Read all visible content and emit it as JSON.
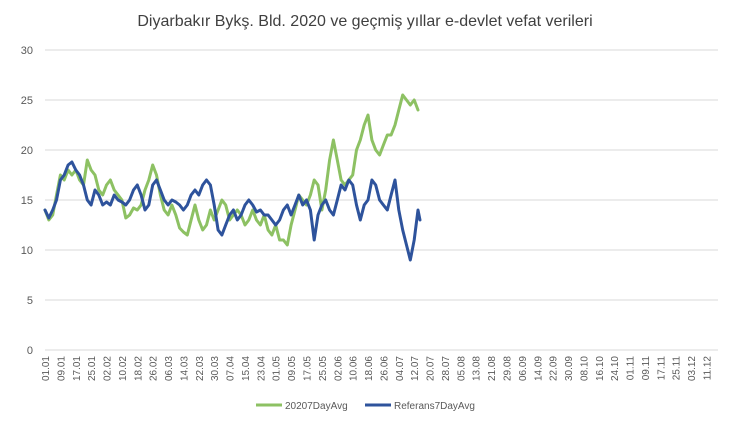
{
  "chart_data": {
    "type": "line",
    "title": "Diyarbakır Bykş. Bld. 2020 ve geçmiş yıllar e-devlet vefat verileri",
    "xlabel": "",
    "ylabel": "",
    "ylim": [
      0,
      30
    ],
    "yticks": [
      0,
      5,
      10,
      15,
      20,
      25,
      30
    ],
    "x_tick_labels": [
      "01.01",
      "09.01",
      "17.01",
      "25.01",
      "02.02",
      "10.02",
      "18.02",
      "26.02",
      "06.03",
      "14.03",
      "22.03",
      "30.03",
      "07.04",
      "15.04",
      "23.04",
      "01.05",
      "09.05",
      "17.05",
      "25.05",
      "02.06",
      "10.06",
      "18.06",
      "26.06",
      "04.07",
      "12.07",
      "20.07",
      "28.07",
      "05.08",
      "13.08",
      "21.08",
      "29.08",
      "06.09",
      "14.09",
      "22.09",
      "30.09",
      "08.10",
      "16.10",
      "24.10",
      "01.11",
      "09.11",
      "17.11",
      "25.11",
      "03.12",
      "11.12"
    ],
    "x_tick_step_days": 8,
    "x_range_days": [
      0,
      350
    ],
    "grid": "horizontal",
    "legend_position": "bottom",
    "colors": {
      "series_2020": "#8dc163",
      "series_ref": "#2e539c",
      "grid": "#d9d9d9",
      "axis_text": "#595959",
      "title": "#404040"
    },
    "series": [
      {
        "name": "20207DayAvg",
        "color": "#8dc163",
        "points": [
          [
            0,
            14.0
          ],
          [
            2,
            13.0
          ],
          [
            4,
            13.5
          ],
          [
            6,
            15.5
          ],
          [
            8,
            17.5
          ],
          [
            10,
            17.0
          ],
          [
            12,
            18.0
          ],
          [
            14,
            17.5
          ],
          [
            16,
            18.0
          ],
          [
            18,
            17.0
          ],
          [
            20,
            16.5
          ],
          [
            22,
            19.0
          ],
          [
            24,
            18.0
          ],
          [
            26,
            17.5
          ],
          [
            28,
            16.0
          ],
          [
            30,
            15.5
          ],
          [
            32,
            16.5
          ],
          [
            34,
            17.0
          ],
          [
            36,
            16.0
          ],
          [
            38,
            15.5
          ],
          [
            40,
            15.0
          ],
          [
            42,
            13.2
          ],
          [
            44,
            13.5
          ],
          [
            46,
            14.2
          ],
          [
            48,
            14.0
          ],
          [
            50,
            14.5
          ],
          [
            52,
            16.0
          ],
          [
            54,
            17.0
          ],
          [
            56,
            18.5
          ],
          [
            58,
            17.5
          ],
          [
            60,
            15.5
          ],
          [
            62,
            14.0
          ],
          [
            64,
            13.5
          ],
          [
            66,
            14.5
          ],
          [
            68,
            13.5
          ],
          [
            70,
            12.2
          ],
          [
            72,
            11.8
          ],
          [
            74,
            11.5
          ],
          [
            76,
            13.0
          ],
          [
            78,
            14.5
          ],
          [
            80,
            13.0
          ],
          [
            82,
            12.0
          ],
          [
            84,
            12.5
          ],
          [
            86,
            14.0
          ],
          [
            88,
            13.0
          ],
          [
            90,
            14.0
          ],
          [
            92,
            15.0
          ],
          [
            94,
            14.5
          ],
          [
            96,
            13.0
          ],
          [
            98,
            13.5
          ],
          [
            100,
            14.0
          ],
          [
            102,
            13.5
          ],
          [
            104,
            12.5
          ],
          [
            106,
            13.0
          ],
          [
            108,
            14.0
          ],
          [
            110,
            13.0
          ],
          [
            112,
            12.5
          ],
          [
            114,
            13.5
          ],
          [
            116,
            12.0
          ],
          [
            118,
            11.5
          ],
          [
            120,
            12.5
          ],
          [
            122,
            11.0
          ],
          [
            124,
            11.0
          ],
          [
            126,
            10.5
          ],
          [
            128,
            12.5
          ],
          [
            130,
            14.0
          ],
          [
            132,
            15.5
          ],
          [
            134,
            15.0
          ],
          [
            136,
            14.5
          ],
          [
            138,
            15.5
          ],
          [
            140,
            17.0
          ],
          [
            142,
            16.5
          ],
          [
            144,
            14.0
          ],
          [
            146,
            16.0
          ],
          [
            148,
            19.0
          ],
          [
            150,
            21.0
          ],
          [
            152,
            19.0
          ],
          [
            154,
            17.0
          ],
          [
            156,
            16.5
          ],
          [
            158,
            17.0
          ],
          [
            160,
            17.5
          ],
          [
            162,
            20.0
          ],
          [
            164,
            21.0
          ],
          [
            166,
            22.5
          ],
          [
            168,
            23.5
          ],
          [
            170,
            21.0
          ],
          [
            172,
            20.0
          ],
          [
            174,
            19.5
          ],
          [
            176,
            20.5
          ],
          [
            178,
            21.5
          ],
          [
            180,
            21.5
          ],
          [
            182,
            22.5
          ],
          [
            184,
            24.0
          ],
          [
            186,
            25.5
          ],
          [
            188,
            25.0
          ],
          [
            190,
            24.5
          ],
          [
            192,
            25.0
          ],
          [
            194,
            24.0
          ]
        ]
      },
      {
        "name": "Referans7DayAvg",
        "color": "#2e539c",
        "points": [
          [
            0,
            14.0
          ],
          [
            2,
            13.2
          ],
          [
            4,
            14.0
          ],
          [
            6,
            15.0
          ],
          [
            8,
            17.0
          ],
          [
            10,
            17.5
          ],
          [
            12,
            18.5
          ],
          [
            14,
            18.8
          ],
          [
            16,
            18.0
          ],
          [
            18,
            17.5
          ],
          [
            20,
            16.5
          ],
          [
            22,
            15.0
          ],
          [
            24,
            14.5
          ],
          [
            26,
            16.0
          ],
          [
            28,
            15.5
          ],
          [
            30,
            14.5
          ],
          [
            32,
            14.8
          ],
          [
            34,
            14.5
          ],
          [
            36,
            15.5
          ],
          [
            38,
            15.0
          ],
          [
            40,
            14.8
          ],
          [
            42,
            14.5
          ],
          [
            44,
            15.0
          ],
          [
            46,
            16.0
          ],
          [
            48,
            16.5
          ],
          [
            50,
            15.5
          ],
          [
            52,
            14.0
          ],
          [
            54,
            14.5
          ],
          [
            56,
            16.5
          ],
          [
            58,
            17.0
          ],
          [
            60,
            16.0
          ],
          [
            62,
            15.0
          ],
          [
            64,
            14.5
          ],
          [
            66,
            15.0
          ],
          [
            68,
            14.8
          ],
          [
            70,
            14.5
          ],
          [
            72,
            14.0
          ],
          [
            74,
            14.5
          ],
          [
            76,
            15.5
          ],
          [
            78,
            16.0
          ],
          [
            80,
            15.5
          ],
          [
            82,
            16.5
          ],
          [
            84,
            17.0
          ],
          [
            86,
            16.5
          ],
          [
            88,
            14.5
          ],
          [
            90,
            12.0
          ],
          [
            92,
            11.5
          ],
          [
            94,
            12.5
          ],
          [
            96,
            13.5
          ],
          [
            98,
            14.0
          ],
          [
            100,
            13.0
          ],
          [
            102,
            13.5
          ],
          [
            104,
            14.5
          ],
          [
            106,
            15.0
          ],
          [
            108,
            14.5
          ],
          [
            110,
            13.8
          ],
          [
            112,
            14.0
          ],
          [
            114,
            13.5
          ],
          [
            116,
            13.5
          ],
          [
            118,
            13.0
          ],
          [
            120,
            12.5
          ],
          [
            122,
            13.0
          ],
          [
            124,
            14.0
          ],
          [
            126,
            14.5
          ],
          [
            128,
            13.5
          ],
          [
            130,
            14.5
          ],
          [
            132,
            15.5
          ],
          [
            134,
            14.5
          ],
          [
            136,
            15.0
          ],
          [
            138,
            14.0
          ],
          [
            140,
            11.0
          ],
          [
            142,
            13.5
          ],
          [
            144,
            14.5
          ],
          [
            146,
            15.0
          ],
          [
            148,
            14.0
          ],
          [
            150,
            13.5
          ],
          [
            152,
            15.0
          ],
          [
            154,
            16.5
          ],
          [
            156,
            16.0
          ],
          [
            158,
            17.0
          ],
          [
            160,
            16.5
          ],
          [
            162,
            14.5
          ],
          [
            164,
            13.0
          ],
          [
            166,
            14.5
          ],
          [
            168,
            15.0
          ],
          [
            170,
            17.0
          ],
          [
            172,
            16.5
          ],
          [
            174,
            15.0
          ],
          [
            176,
            14.5
          ],
          [
            178,
            14.0
          ],
          [
            180,
            15.5
          ],
          [
            182,
            17.0
          ],
          [
            184,
            14.0
          ],
          [
            186,
            12.0
          ],
          [
            188,
            10.5
          ],
          [
            190,
            9.0
          ],
          [
            192,
            11.0
          ],
          [
            194,
            14.0
          ],
          [
            195,
            13.0
          ]
        ]
      }
    ]
  }
}
